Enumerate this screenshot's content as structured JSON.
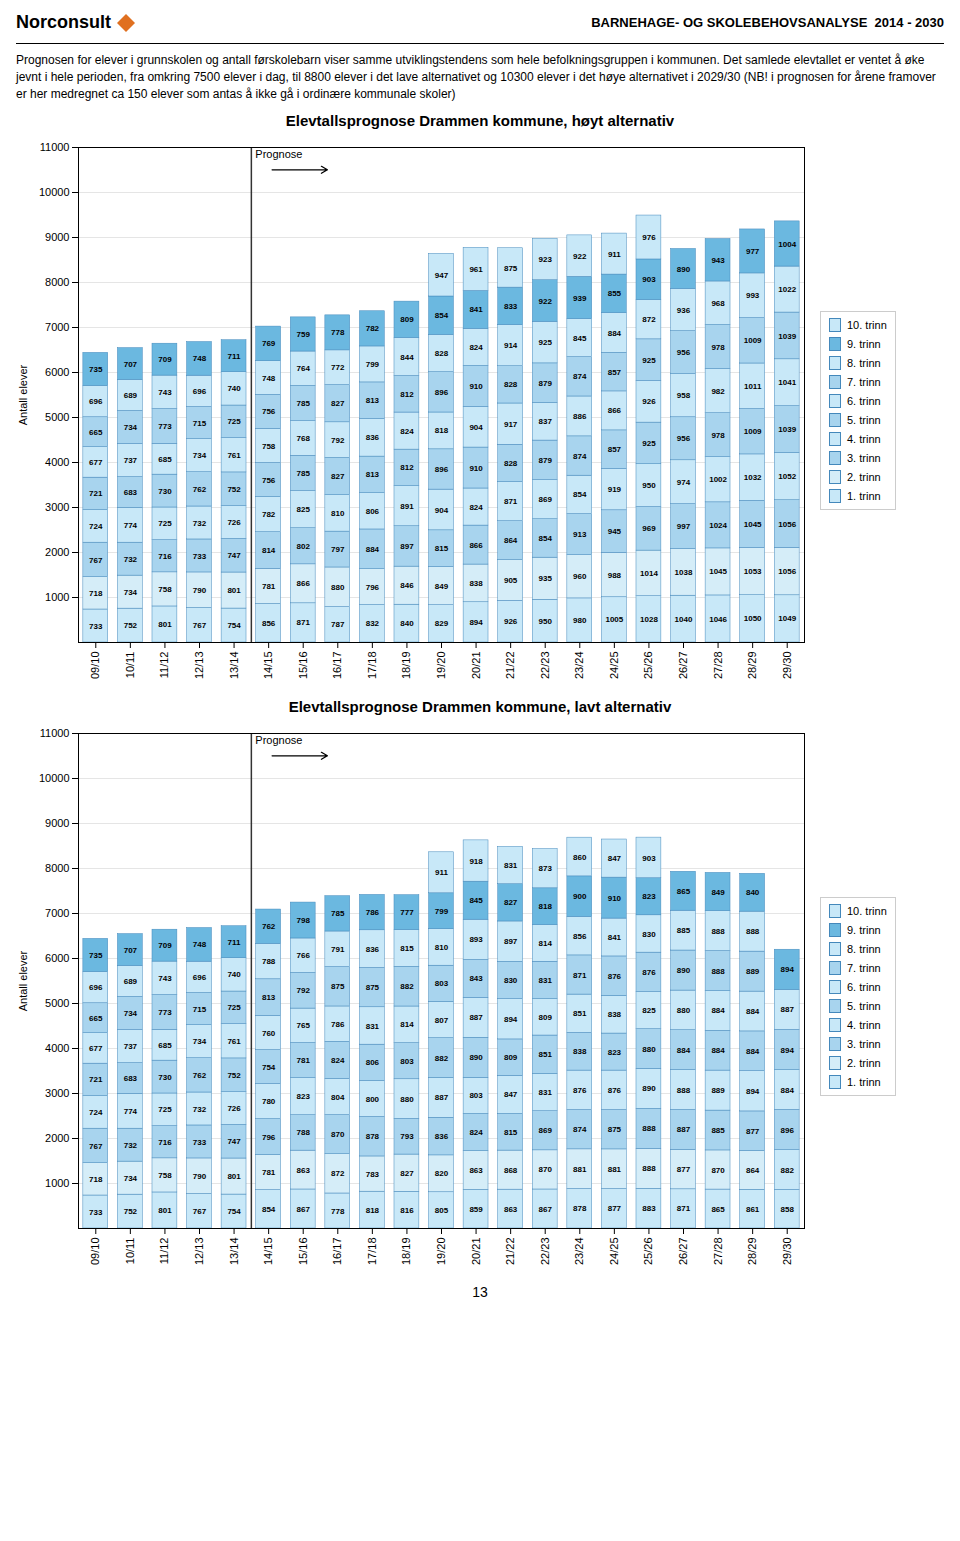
{
  "header": {
    "brand": "Norconsult",
    "title": "BARNEHAGE- OG SKOLEBEHOVSANALYSE  2014 - 2030",
    "text": "Prognosen for elever i grunnskolen og antall førskolebarn viser samme utviklingstendens som hele befolkningsgruppen i kommunen. Det samlede elevtallet er ventet å øke jevnt i hele perioden, fra omkring 7500 elever i dag, til 8800 elever i det lave alternativet og 10300 elever i det høye alternativet i 2029/30 (NB! i prognosen for årene framover er her medregnet ca 150 elever som antas å ikke gå i ordinære kommunale skoler)"
  },
  "page_number": "13",
  "chart_data": [
    {
      "type": "bar",
      "stacked": true,
      "title": "Elevtallsprognose Drammen kommune, høyt alternativ",
      "ylabel": "Antall elever",
      "categories": [
        "09/10",
        "10/11",
        "11/12",
        "12/13",
        "13/14",
        "14/15",
        "15/16",
        "16/17",
        "17/18",
        "18/19",
        "19/20",
        "20/21",
        "21/22",
        "22/23",
        "23/24",
        "24/25",
        "25/26",
        "26/27",
        "27/28",
        "28/29",
        "29/30"
      ],
      "ylim": [
        0,
        11000
      ],
      "yticks": [
        1000,
        2000,
        3000,
        4000,
        5000,
        6000,
        7000,
        8000,
        9000,
        10000,
        11000
      ],
      "grid": true,
      "legend": "right",
      "data_labels": true,
      "annotations": [
        {
          "text": "Prognose",
          "x": "14/15"
        }
      ],
      "series": [
        {
          "name": "1. trinn",
          "color": "#c8e8f8",
          "values": [
            733,
            752,
            801,
            767,
            754,
            856,
            871,
            787,
            832,
            840,
            829,
            894,
            926,
            950,
            980,
            1005,
            1028,
            1040,
            1046,
            1050,
            1049
          ]
        },
        {
          "name": "2. trinn",
          "color": "#d5edf8",
          "values": [
            718,
            734,
            758,
            790,
            801,
            781,
            866,
            880,
            796,
            846,
            849,
            838,
            905,
            935,
            960,
            988,
            1014,
            1038,
            1045,
            1053,
            1056
          ]
        },
        {
          "name": "3. trinn",
          "color": "#a8d4ee",
          "values": [
            767,
            732,
            716,
            733,
            747,
            814,
            802,
            797,
            884,
            897,
            815,
            866,
            864,
            854,
            913,
            945,
            969,
            997,
            1024,
            1045,
            1056
          ]
        },
        {
          "name": "4. trinn",
          "color": "#c8e8f8",
          "values": [
            724,
            774,
            725,
            732,
            726,
            782,
            825,
            810,
            806,
            891,
            904,
            824,
            871,
            869,
            854,
            919,
            950,
            974,
            1002,
            1032,
            1052
          ]
        },
        {
          "name": "5. trinn",
          "color": "#a8d4ee",
          "values": [
            721,
            683,
            730,
            762,
            752,
            756,
            785,
            827,
            813,
            812,
            896,
            910,
            828,
            879,
            874,
            857,
            925,
            956,
            978,
            1009,
            1039
          ]
        },
        {
          "name": "6. trinn",
          "color": "#c8e8f8",
          "values": [
            677,
            737,
            685,
            734,
            761,
            758,
            768,
            792,
            836,
            824,
            818,
            904,
            917,
            837,
            886,
            866,
            926,
            958,
            982,
            1011,
            1041
          ]
        },
        {
          "name": "7. trinn",
          "color": "#a8d4ee",
          "values": [
            665,
            734,
            773,
            715,
            725,
            756,
            785,
            827,
            813,
            812,
            896,
            910,
            828,
            879,
            874,
            857,
            925,
            956,
            978,
            1009,
            1039
          ]
        },
        {
          "name": "8. trinn",
          "color": "#c8e8f8",
          "values": [
            696,
            689,
            743,
            696,
            740,
            748,
            764,
            772,
            799,
            844,
            828,
            824,
            914,
            925,
            845,
            884,
            872,
            936,
            968,
            993,
            1022
          ]
        },
        {
          "name": "9. trinn",
          "color": "#6bb8e0",
          "values": [
            735,
            707,
            709,
            748,
            711,
            769,
            759,
            778,
            782,
            809,
            854,
            841,
            833,
            922,
            939,
            855,
            903,
            890,
            943,
            977,
            1004
          ]
        },
        {
          "name": "10. trinn",
          "color": "#c8e8f8",
          "values": [
            0,
            0,
            0,
            0,
            0,
            0,
            0,
            0,
            0,
            0,
            947,
            961,
            875,
            923,
            922,
            911,
            976,
            0,
            0,
            0,
            0
          ]
        }
      ]
    },
    {
      "type": "bar",
      "stacked": true,
      "title": "Elevtallsprognose Drammen kommune, lavt alternativ",
      "ylabel": "Antall elever",
      "categories": [
        "09/10",
        "10/11",
        "11/12",
        "12/13",
        "13/14",
        "14/15",
        "15/16",
        "16/17",
        "17/18",
        "18/19",
        "19/20",
        "20/21",
        "21/22",
        "22/23",
        "23/24",
        "24/25",
        "25/26",
        "26/27",
        "27/28",
        "28/29",
        "29/30"
      ],
      "ylim": [
        0,
        11000
      ],
      "yticks": [
        1000,
        2000,
        3000,
        4000,
        5000,
        6000,
        7000,
        8000,
        9000,
        10000,
        11000
      ],
      "grid": true,
      "legend": "right",
      "data_labels": true,
      "annotations": [
        {
          "text": "Prognose",
          "x": "14/15"
        }
      ],
      "series": [
        {
          "name": "1. trinn",
          "color": "#c8e8f8",
          "values": [
            733,
            752,
            801,
            767,
            754,
            854,
            867,
            778,
            818,
            816,
            805,
            859,
            863,
            867,
            878,
            877,
            883,
            871,
            865,
            861,
            858
          ]
        },
        {
          "name": "2. trinn",
          "color": "#d5edf8",
          "values": [
            718,
            734,
            758,
            790,
            801,
            781,
            863,
            872,
            783,
            827,
            820,
            863,
            868,
            870,
            881,
            881,
            888,
            877,
            870,
            864,
            0
          ]
        },
        {
          "name": "3. trinn",
          "color": "#a8d4ee",
          "values": [
            767,
            732,
            716,
            733,
            747,
            796,
            788,
            870,
            878,
            793,
            836,
            824,
            815,
            869,
            874,
            875,
            888,
            887,
            885,
            877,
            0
          ]
        },
        {
          "name": "4. trinn",
          "color": "#c8e8f8",
          "values": [
            724,
            774,
            725,
            732,
            726,
            780,
            823,
            804,
            800,
            880,
            887,
            803,
            847,
            831,
            876,
            876,
            890,
            888,
            889,
            894,
            882
          ]
        },
        {
          "name": "5. trinn",
          "color": "#a8d4ee",
          "values": [
            721,
            683,
            730,
            762,
            752,
            754,
            781,
            824,
            806,
            803,
            882,
            890,
            809,
            851,
            838,
            823,
            880,
            884,
            884,
            884,
            896
          ]
        },
        {
          "name": "6. trinn",
          "color": "#c8e8f8",
          "values": [
            677,
            737,
            685,
            734,
            761,
            760,
            765,
            786,
            831,
            814,
            807,
            887,
            894,
            809,
            851,
            838,
            825,
            880,
            884,
            884,
            884
          ]
        },
        {
          "name": "7. trinn",
          "color": "#a8d4ee",
          "values": [
            665,
            734,
            773,
            715,
            725,
            813,
            792,
            875,
            875,
            882,
            803,
            843,
            830,
            831,
            871,
            876,
            876,
            890,
            888,
            889,
            894
          ]
        },
        {
          "name": "8. trinn",
          "color": "#c8e8f8",
          "values": [
            696,
            689,
            743,
            696,
            740,
            788,
            766,
            791,
            836,
            815,
            810,
            893,
            897,
            814,
            856,
            841,
            830,
            885,
            888,
            888,
            887
          ]
        },
        {
          "name": "9. trinn",
          "color": "#6bb8e0",
          "values": [
            735,
            707,
            709,
            748,
            711,
            762,
            798,
            785,
            786,
            777,
            799,
            845,
            827,
            818,
            900,
            910,
            823,
            865,
            849,
            840,
            894
          ]
        },
        {
          "name": "10. trinn",
          "color": "#c8e8f8",
          "values": [
            0,
            0,
            0,
            0,
            0,
            0,
            0,
            0,
            0,
            0,
            911,
            918,
            831,
            873,
            860,
            847,
            903,
            0,
            0,
            0,
            0
          ]
        }
      ]
    }
  ]
}
